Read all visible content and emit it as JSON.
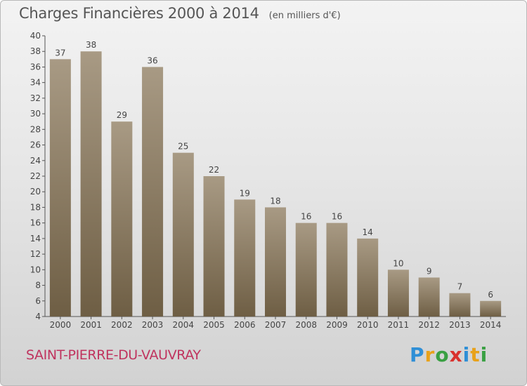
{
  "title": "Charges Financières 2000 à 2014",
  "subtitle": "(en milliers d'€)",
  "commune": "SAINT-PIERRE-DU-VAUVRAY",
  "logo": {
    "letters": [
      "P",
      "r",
      "o",
      "x",
      "i",
      "t",
      "i"
    ],
    "colors": [
      "#2f8fd6",
      "#e8a21a",
      "#3aa043",
      "#d9322e",
      "#2f8fd6",
      "#e8a21a",
      "#3aa043"
    ]
  },
  "colors": {
    "bar_top": "#a89a84",
    "bar_bottom": "#6e5e44",
    "label": "#444444"
  },
  "chart_data": {
    "type": "bar",
    "categories": [
      "2000",
      "2001",
      "2002",
      "2003",
      "2004",
      "2005",
      "2006",
      "2007",
      "2008",
      "2009",
      "2010",
      "2011",
      "2012",
      "2013",
      "2014"
    ],
    "values": [
      37,
      38,
      29,
      36,
      25,
      22,
      19,
      18,
      16,
      16,
      14,
      10,
      9,
      7,
      6
    ],
    "ylim": [
      4,
      40
    ],
    "yticks": [
      4,
      6,
      8,
      10,
      12,
      14,
      16,
      18,
      20,
      22,
      24,
      26,
      28,
      30,
      32,
      34,
      36,
      38,
      40
    ],
    "grid": false,
    "data_labels": true
  }
}
